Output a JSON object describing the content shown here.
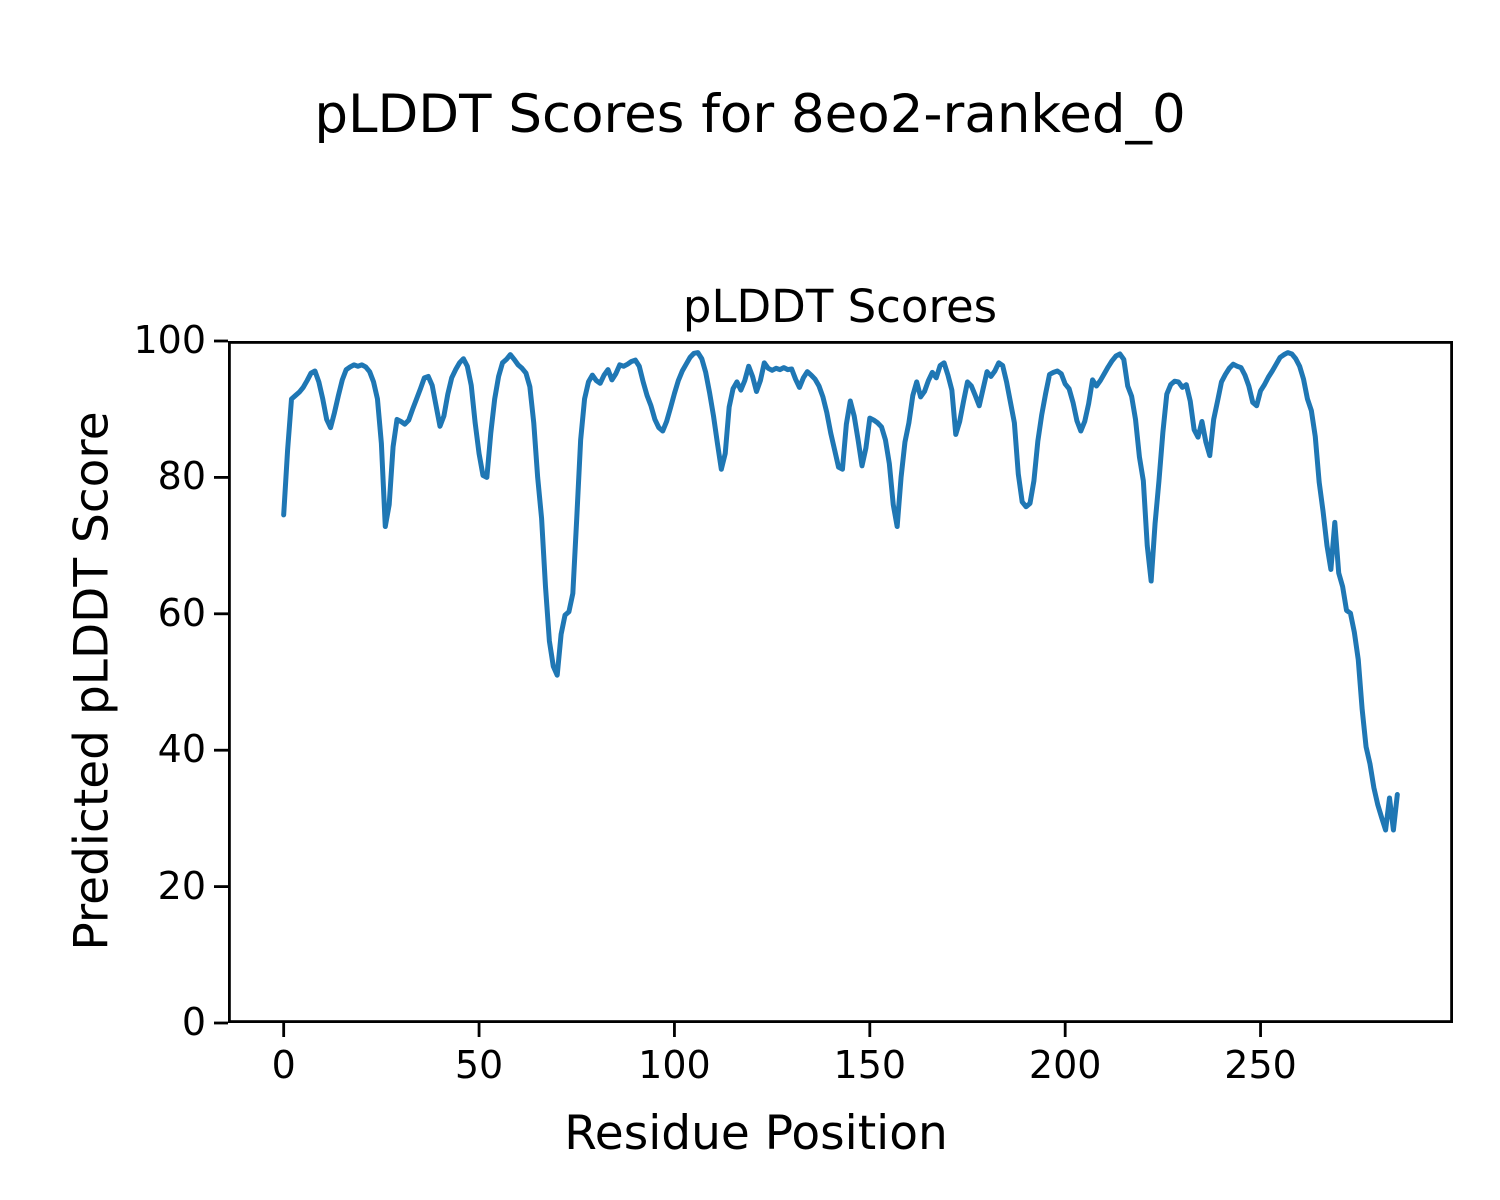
{
  "figure": {
    "suptitle": "pLDDT Scores for 8eo2-ranked_0",
    "background_color": "#ffffff",
    "text_color": "#000000",
    "spine_color": "#000000"
  },
  "chart_data": {
    "type": "line",
    "title": "pLDDT Scores",
    "xlabel": "Residue Position",
    "ylabel": "Predicted pLDDT Score",
    "xlim": [
      -14.25,
      299.25
    ],
    "ylim": [
      0,
      100
    ],
    "xticks": [
      0,
      50,
      100,
      150,
      200,
      250
    ],
    "yticks": [
      0,
      20,
      40,
      60,
      80,
      100
    ],
    "grid": false,
    "legend": false,
    "series": [
      {
        "name": "pLDDT",
        "color": "#1f77b4",
        "line_width": 5,
        "x_start": 0,
        "x_step": 1,
        "values": [
          74.5,
          84,
          91.5,
          92,
          92.5,
          93.2,
          94.2,
          95.3,
          95.6,
          94,
          91.5,
          88.5,
          87.3,
          89.5,
          92,
          94.3,
          95.8,
          96.2,
          96.5,
          96.3,
          96.5,
          96.2,
          95.5,
          94,
          91.5,
          85,
          72.8,
          76,
          84.5,
          88.5,
          88.2,
          87.8,
          88.4,
          90,
          91.5,
          93,
          94.6,
          94.8,
          93.5,
          90.5,
          87.5,
          89,
          92.2,
          94.6,
          95.8,
          96.8,
          97.4,
          96.3,
          93.5,
          88,
          83.5,
          80.3,
          80,
          86.5,
          91.5,
          94.8,
          96.8,
          97.3,
          98,
          97.3,
          96.5,
          96,
          95.3,
          93.3,
          88,
          80,
          74,
          64,
          56,
          52.3,
          51,
          57,
          59.8,
          60.3,
          63,
          74,
          85.5,
          91.5,
          94,
          95,
          94.2,
          93.8,
          95,
          95.8,
          94.3,
          95.2,
          96.5,
          96.3,
          96.6,
          97,
          97.2,
          96.3,
          94,
          92,
          90.5,
          88.5,
          87.3,
          86.8,
          88.2,
          90.2,
          92.3,
          94.2,
          95.6,
          96.6,
          97.6,
          98.2,
          98.3,
          97.4,
          95.4,
          92.4,
          89,
          85,
          81.2,
          83.5,
          90.3,
          93,
          94,
          92.8,
          94.2,
          96.3,
          94.8,
          92.6,
          94.2,
          96.8,
          96,
          95.7,
          96,
          95.8,
          96.1,
          95.8,
          95.9,
          94.4,
          93.2,
          94.6,
          95.5,
          95,
          94.4,
          93.4,
          91.8,
          89.5,
          86.5,
          84,
          81.5,
          81.2,
          87.8,
          91.2,
          89,
          85.5,
          81.7,
          84.3,
          88.7,
          88.4,
          88,
          87.4,
          85.5,
          82,
          76,
          72.8,
          80,
          85.2,
          88,
          92,
          94,
          91.8,
          92.6,
          94.2,
          95.4,
          94.6,
          96.4,
          96.8,
          95,
          92.8,
          86.3,
          88.2,
          91.2,
          94,
          93.4,
          92,
          90.5,
          93,
          95.5,
          94.8,
          95.6,
          96.8,
          96.4,
          94,
          91,
          88,
          80.5,
          76.4,
          75.7,
          76.2,
          79.5,
          85.3,
          89.2,
          92.3,
          95.1,
          95.4,
          95.6,
          95.2,
          93.7,
          93,
          91,
          88.3,
          86.8,
          88.2,
          90.8,
          94.3,
          93.4,
          94.2,
          95.2,
          96.2,
          97.1,
          97.8,
          98.1,
          97.3,
          93.4,
          91.9,
          88.5,
          83,
          79.5,
          70,
          64.8,
          73.2,
          79.5,
          86.6,
          92.2,
          93.6,
          94.1,
          94,
          93.2,
          93.6,
          91.2,
          87,
          85.9,
          88.2,
          85.2,
          83.2,
          88.5,
          91.2,
          94,
          95.1,
          96,
          96.6,
          96.3,
          96.1,
          95,
          93.4,
          91,
          90.5,
          92.7,
          93.6,
          94.7,
          95.6,
          96.6,
          97.6,
          98,
          98.3,
          98.1,
          97.4,
          96.3,
          94.4,
          91.5,
          89.8,
          86,
          79.3,
          75,
          70,
          66.5,
          73.4,
          66,
          64,
          60.5,
          60.1,
          57.3,
          53.3,
          46,
          40.5,
          38,
          34.5,
          32,
          30.1,
          28.3,
          33,
          28.3,
          33.5
        ]
      }
    ]
  }
}
